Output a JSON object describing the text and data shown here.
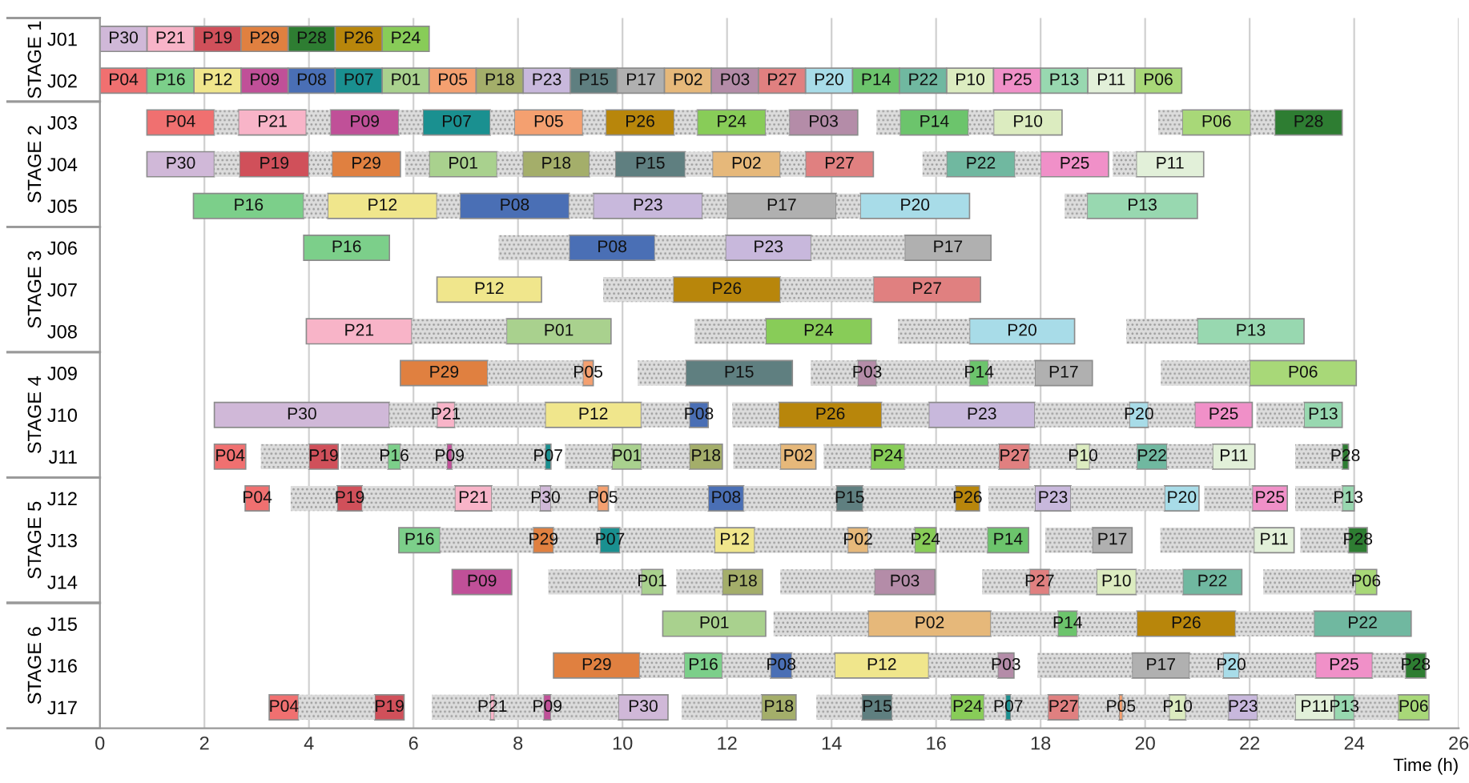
{
  "chart_data": {
    "type": "bar",
    "orientation": "horizontal",
    "xlabel": "Time (h)",
    "categories": [
      "J01",
      "J02",
      "J03",
      "J04",
      "J05",
      "J06",
      "J07",
      "J08",
      "J09",
      "J10",
      "J11",
      "J12",
      "J13",
      "J14",
      "J15",
      "J16",
      "J17"
    ],
    "xlim": [
      0,
      26
    ],
    "xticks": [
      0,
      2,
      4,
      6,
      8,
      10,
      12,
      14,
      16,
      18,
      20,
      22,
      24,
      26
    ],
    "grid": "x",
    "legend": false,
    "annotations": [
      "STAGE 1",
      "STAGE 2",
      "STAGE 3",
      "STAGE 4",
      "STAGE 5",
      "STAGE 6"
    ],
    "series": [
      {
        "name": "P01",
        "color": "#a9d18e",
        "base": [
          null,
          5.4,
          null,
          6.3,
          null,
          null,
          null,
          7.78,
          null,
          null,
          9.8,
          null,
          null,
          10.36,
          10.77,
          null,
          null
        ],
        "values": [
          null,
          0.9,
          null,
          1.3,
          null,
          null,
          null,
          2.0,
          null,
          null,
          0.56,
          null,
          null,
          0.41,
          1.97,
          null,
          null
        ]
      },
      {
        "name": "P02",
        "color": "#e6b87a",
        "base": [
          null,
          10.8,
          null,
          11.72,
          null,
          null,
          null,
          null,
          null,
          null,
          13.02,
          null,
          14.31,
          null,
          14.7,
          null,
          null
        ],
        "values": [
          null,
          0.9,
          null,
          1.3,
          null,
          null,
          null,
          null,
          null,
          null,
          0.68,
          null,
          0.39,
          null,
          2.35,
          null,
          null
        ]
      },
      {
        "name": "P03",
        "color": "#b48ca8",
        "base": [
          null,
          11.7,
          13.19,
          null,
          null,
          null,
          null,
          null,
          14.5,
          null,
          null,
          null,
          null,
          14.82,
          null,
          17.18,
          null
        ],
        "values": [
          null,
          0.9,
          1.31,
          null,
          null,
          null,
          null,
          null,
          0.36,
          null,
          null,
          null,
          null,
          1.16,
          null,
          0.31,
          null
        ]
      },
      {
        "name": "P04",
        "color": "#f07070",
        "base": [
          null,
          0,
          0.9,
          null,
          null,
          null,
          null,
          null,
          null,
          null,
          2.19,
          2.78,
          null,
          null,
          null,
          null,
          3.24
        ],
        "values": [
          null,
          0.9,
          1.29,
          null,
          null,
          null,
          null,
          null,
          null,
          null,
          0.6,
          0.46,
          null,
          null,
          null,
          null,
          0.56
        ]
      },
      {
        "name": "P05",
        "color": "#f4a070",
        "base": [
          null,
          6.3,
          7.93,
          null,
          null,
          null,
          null,
          null,
          9.24,
          null,
          null,
          9.52,
          null,
          null,
          null,
          null,
          19.5
        ],
        "values": [
          null,
          0.9,
          1.31,
          null,
          null,
          null,
          null,
          null,
          0.2,
          null,
          null,
          0.21,
          null,
          null,
          null,
          null,
          0.07
        ]
      },
      {
        "name": "P06",
        "color": "#a8d878",
        "base": [
          null,
          19.8,
          20.71,
          null,
          null,
          null,
          null,
          null,
          22.0,
          null,
          null,
          null,
          null,
          24.02,
          null,
          null,
          24.84
        ],
        "values": [
          null,
          0.9,
          1.31,
          null,
          null,
          null,
          null,
          null,
          2.04,
          null,
          null,
          null,
          null,
          0.41,
          null,
          null,
          0.59
        ]
      },
      {
        "name": "P07",
        "color": "#1a9090",
        "base": [
          null,
          4.5,
          6.18,
          null,
          null,
          null,
          null,
          null,
          null,
          null,
          8.52,
          null,
          9.57,
          null,
          null,
          null,
          17.33
        ],
        "values": [
          null,
          0.9,
          1.29,
          null,
          null,
          null,
          null,
          null,
          null,
          null,
          0.11,
          null,
          0.38,
          null,
          null,
          null,
          0.1
        ]
      },
      {
        "name": "P08",
        "color": "#4a6fb5",
        "base": [
          null,
          3.6,
          null,
          null,
          6.89,
          8.98,
          null,
          null,
          null,
          11.28,
          null,
          11.64,
          null,
          null,
          null,
          12.83,
          null
        ],
        "values": [
          null,
          0.9,
          null,
          null,
          2.09,
          1.64,
          null,
          null,
          null,
          0.36,
          null,
          0.68,
          null,
          null,
          null,
          0.41,
          null
        ]
      },
      {
        "name": "P09",
        "color": "#c05098",
        "base": [
          null,
          2.7,
          4.41,
          null,
          null,
          null,
          null,
          null,
          null,
          null,
          6.64,
          null,
          null,
          6.74,
          null,
          null,
          8.49
        ],
        "values": [
          null,
          0.9,
          1.31,
          null,
          null,
          null,
          null,
          null,
          null,
          null,
          0.1,
          null,
          null,
          1.14,
          null,
          null,
          0.14
        ]
      },
      {
        "name": "P10",
        "color": "#dcecc0",
        "base": [
          null,
          16.2,
          17.1,
          null,
          null,
          null,
          null,
          null,
          null,
          null,
          18.68,
          null,
          null,
          19.07,
          null,
          null,
          20.46
        ],
        "values": [
          null,
          0.9,
          1.31,
          null,
          null,
          null,
          null,
          null,
          null,
          null,
          0.26,
          null,
          null,
          0.76,
          null,
          null,
          0.32
        ]
      },
      {
        "name": "P11",
        "color": "#e2f0d9",
        "base": [
          null,
          18.9,
          null,
          19.83,
          null,
          null,
          null,
          null,
          null,
          null,
          21.29,
          null,
          22.08,
          null,
          null,
          null,
          22.87
        ],
        "values": [
          null,
          0.9,
          null,
          1.29,
          null,
          null,
          null,
          null,
          null,
          null,
          0.81,
          null,
          0.77,
          null,
          null,
          null,
          0.75
        ]
      },
      {
        "name": "P12",
        "color": "#f0e68c",
        "base": [
          null,
          1.8,
          null,
          null,
          4.36,
          null,
          6.45,
          null,
          null,
          8.52,
          null,
          null,
          11.76,
          null,
          null,
          14.06,
          null
        ],
        "values": [
          null,
          0.9,
          null,
          null,
          2.09,
          null,
          2.0,
          null,
          null,
          1.84,
          null,
          null,
          0.77,
          null,
          null,
          1.8,
          null
        ]
      },
      {
        "name": "P13",
        "color": "#98d8b0",
        "base": [
          null,
          18.0,
          null,
          null,
          18.89,
          null,
          null,
          21.0,
          null,
          23.04,
          null,
          23.77,
          null,
          null,
          null,
          null,
          23.62
        ],
        "values": [
          null,
          0.9,
          null,
          null,
          2.11,
          null,
          null,
          2.04,
          null,
          0.73,
          null,
          0.23,
          null,
          null,
          null,
          null,
          0.38
        ]
      },
      {
        "name": "P14",
        "color": "#6cc46c",
        "base": [
          null,
          14.4,
          15.31,
          null,
          null,
          null,
          null,
          null,
          16.64,
          null,
          null,
          null,
          16.98,
          null,
          18.33,
          null,
          null
        ],
        "values": [
          null,
          0.9,
          1.31,
          null,
          null,
          null,
          null,
          null,
          0.36,
          null,
          null,
          null,
          0.79,
          null,
          0.37,
          null,
          null
        ]
      },
      {
        "name": "P15",
        "color": "#5f7f80",
        "base": [
          null,
          9.0,
          null,
          9.86,
          null,
          null,
          null,
          null,
          11.21,
          null,
          null,
          14.09,
          null,
          null,
          null,
          null,
          14.58
        ],
        "values": [
          null,
          0.9,
          null,
          1.34,
          null,
          null,
          null,
          null,
          2.04,
          null,
          null,
          0.51,
          null,
          null,
          null,
          null,
          0.58
        ]
      },
      {
        "name": "P16",
        "color": "#7ccf8a",
        "base": [
          null,
          0.9,
          null,
          null,
          1.79,
          3.9,
          null,
          null,
          null,
          null,
          5.51,
          null,
          5.72,
          null,
          null,
          11.18,
          null
        ],
        "values": [
          null,
          0.9,
          null,
          null,
          2.11,
          1.64,
          null,
          null,
          null,
          null,
          0.24,
          null,
          0.79,
          null,
          null,
          0.73,
          null
        ]
      },
      {
        "name": "P17",
        "color": "#b0b0b0",
        "base": [
          null,
          9.9,
          null,
          null,
          12.0,
          15.4,
          null,
          null,
          17.89,
          null,
          null,
          null,
          18.99,
          null,
          null,
          19.75,
          null
        ],
        "values": [
          null,
          0.9,
          null,
          null,
          2.09,
          1.65,
          null,
          null,
          1.1,
          null,
          null,
          null,
          0.76,
          null,
          null,
          1.1,
          null
        ]
      },
      {
        "name": "P18",
        "color": "#a4ae6a",
        "base": [
          null,
          7.2,
          null,
          8.09,
          null,
          null,
          null,
          null,
          null,
          null,
          11.28,
          null,
          null,
          11.91,
          null,
          null,
          12.66
        ],
        "values": [
          null,
          0.9,
          null,
          1.28,
          null,
          null,
          null,
          null,
          null,
          null,
          0.63,
          null,
          null,
          0.77,
          null,
          null,
          0.66
        ]
      },
      {
        "name": "P19",
        "color": "#d0505a",
        "base": [
          1.8,
          null,
          null,
          2.67,
          null,
          null,
          null,
          null,
          null,
          null,
          4.0,
          4.54,
          null,
          null,
          null,
          null,
          5.26
        ],
        "values": [
          0.9,
          null,
          null,
          1.33,
          null,
          null,
          null,
          null,
          null,
          null,
          0.56,
          0.48,
          null,
          null,
          null,
          null,
          0.56
        ]
      },
      {
        "name": "P20",
        "color": "#a8dce8",
        "base": [
          null,
          13.5,
          null,
          null,
          14.55,
          null,
          null,
          16.64,
          null,
          19.7,
          null,
          20.37,
          null,
          null,
          null,
          21.49,
          null
        ],
        "values": [
          null,
          0.9,
          null,
          null,
          2.09,
          null,
          null,
          2.01,
          null,
          0.36,
          null,
          0.66,
          null,
          null,
          null,
          0.31,
          null
        ]
      },
      {
        "name": "P21",
        "color": "#f8b4c8",
        "base": [
          0.9,
          null,
          2.65,
          null,
          null,
          null,
          null,
          3.95,
          null,
          6.45,
          null,
          6.79,
          null,
          null,
          null,
          null,
          7.47
        ],
        "values": [
          0.9,
          null,
          1.3,
          null,
          null,
          null,
          null,
          2.02,
          null,
          0.34,
          null,
          0.71,
          null,
          null,
          null,
          null,
          0.08
        ]
      },
      {
        "name": "P22",
        "color": "#70b8a0",
        "base": [
          null,
          15.3,
          null,
          16.2,
          null,
          null,
          null,
          null,
          null,
          null,
          19.84,
          null,
          null,
          20.72,
          23.23,
          null,
          null
        ],
        "values": [
          null,
          0.9,
          null,
          1.31,
          null,
          null,
          null,
          null,
          null,
          null,
          0.58,
          null,
          null,
          1.13,
          1.86,
          null,
          null
        ]
      },
      {
        "name": "P23",
        "color": "#c8b8dc",
        "base": [
          null,
          8.1,
          null,
          null,
          9.44,
          11.97,
          null,
          null,
          null,
          15.86,
          null,
          17.89,
          null,
          null,
          null,
          null,
          21.59
        ],
        "values": [
          null,
          0.9,
          null,
          null,
          2.09,
          1.64,
          null,
          null,
          null,
          2.03,
          null,
          0.69,
          null,
          null,
          null,
          null,
          0.56
        ]
      },
      {
        "name": "P24",
        "color": "#88cc58",
        "base": [
          5.4,
          null,
          11.43,
          null,
          null,
          null,
          null,
          12.74,
          null,
          null,
          14.75,
          null,
          15.59,
          null,
          null,
          null,
          16.28
        ],
        "values": [
          0.9,
          null,
          1.31,
          null,
          null,
          null,
          null,
          2.02,
          null,
          null,
          0.65,
          null,
          0.41,
          null,
          null,
          null,
          0.64
        ]
      },
      {
        "name": "P25",
        "color": "#f090c8",
        "base": [
          null,
          17.1,
          null,
          18.0,
          null,
          null,
          null,
          null,
          null,
          20.95,
          null,
          22.05,
          null,
          null,
          null,
          23.26,
          null
        ],
        "values": [
          null,
          0.9,
          null,
          1.3,
          null,
          null,
          null,
          null,
          null,
          1.1,
          null,
          0.67,
          null,
          null,
          null,
          1.09,
          null
        ]
      },
      {
        "name": "P26",
        "color": "#b8860b",
        "base": [
          4.5,
          null,
          9.68,
          null,
          null,
          null,
          10.97,
          null,
          null,
          12.99,
          null,
          16.37,
          null,
          null,
          19.84,
          null,
          null
        ],
        "values": [
          0.9,
          null,
          1.31,
          null,
          null,
          null,
          2.05,
          null,
          null,
          1.97,
          null,
          0.46,
          null,
          null,
          1.89,
          null,
          null
        ]
      },
      {
        "name": "P27",
        "color": "#e08080",
        "base": [
          null,
          12.6,
          null,
          13.5,
          null,
          null,
          14.8,
          null,
          null,
          null,
          17.2,
          null,
          null,
          17.79,
          null,
          null,
          18.14
        ],
        "values": [
          null,
          0.9,
          null,
          1.3,
          null,
          null,
          2.05,
          null,
          null,
          null,
          0.59,
          null,
          null,
          0.38,
          null,
          null,
          0.59
        ]
      },
      {
        "name": "P28",
        "color": "#2e7d32",
        "base": [
          3.6,
          null,
          22.48,
          null,
          null,
          null,
          null,
          null,
          null,
          null,
          23.77,
          null,
          23.89,
          null,
          null,
          24.98,
          null
        ],
        "values": [
          0.9,
          null,
          1.29,
          null,
          null,
          null,
          null,
          null,
          null,
          null,
          0.12,
          null,
          0.36,
          null,
          null,
          0.39,
          null
        ]
      },
      {
        "name": "P29",
        "color": "#e08040",
        "base": [
          2.7,
          null,
          null,
          4.44,
          null,
          null,
          null,
          null,
          5.75,
          null,
          null,
          null,
          8.29,
          null,
          null,
          8.68,
          null
        ],
        "values": [
          0.9,
          null,
          null,
          1.31,
          null,
          null,
          null,
          null,
          1.67,
          null,
          null,
          null,
          0.39,
          null,
          null,
          1.65,
          null
        ]
      },
      {
        "name": "P30",
        "color": "#d0b8d8",
        "base": [
          0,
          null,
          null,
          0.9,
          null,
          null,
          null,
          null,
          null,
          2.19,
          null,
          8.42,
          null,
          null,
          null,
          null,
          9.92
        ],
        "values": [
          0.9,
          null,
          null,
          1.29,
          null,
          null,
          null,
          null,
          null,
          3.35,
          null,
          0.21,
          null,
          null,
          null,
          null,
          0.95
        ]
      },
      {
        "color": "#dcdcdc",
        "base": [
          null,
          null,
          2.19,
          2.19,
          3.9,
          7.63,
          9.63,
          5.97,
          7.42,
          5.54,
          3.08,
          3.65,
          6.51,
          8.58,
          12.89,
          10.33,
          3.8
        ],
        "values": [
          null,
          null,
          0.46,
          0.48,
          0.46,
          1.35,
          1.34,
          1.81,
          1.82,
          0.91,
          0.92,
          0.89,
          1.78,
          1.78,
          1.81,
          0.85,
          1.46
        ]
      },
      {
        "color": "#dcdcdc",
        "base": [
          null,
          null,
          3.95,
          4.0,
          6.45,
          10.62,
          13.02,
          11.38,
          10.29,
          6.79,
          4.61,
          5.02,
          8.68,
          11.03,
          17.05,
          11.91,
          6.35
        ],
        "values": [
          null,
          null,
          0.46,
          0.44,
          0.44,
          1.35,
          1.78,
          1.36,
          0.92,
          1.73,
          0.9,
          1.77,
          0.89,
          0.88,
          1.28,
          0.92,
          1.12
        ]
      },
      {
        "color": "#dcdcdc",
        "base": [
          null,
          null,
          5.72,
          5.84,
          8.98,
          13.61,
          null,
          15.27,
          13.6,
          10.36,
          5.75,
          7.5,
          9.95,
          13.02,
          18.7,
          13.24,
          7.55
        ],
        "values": [
          null,
          null,
          0.46,
          0.46,
          0.46,
          1.79,
          null,
          1.37,
          0.9,
          0.92,
          0.89,
          0.92,
          1.81,
          1.8,
          1.14,
          0.82,
          0.94
        ]
      },
      {
        "color": "#dcdcdc",
        "base": [
          null,
          null,
          7.47,
          7.6,
          11.53,
          null,
          null,
          19.64,
          14.86,
          12.1,
          6.74,
          8.63,
          12.53,
          16.88,
          21.73,
          15.86,
          8.63
        ],
        "values": [
          null,
          null,
          0.46,
          0.49,
          0.47,
          null,
          null,
          1.36,
          1.78,
          0.89,
          1.78,
          0.89,
          1.78,
          0.91,
          1.5,
          1.32,
          1.29
        ]
      },
      {
        "color": "#dcdcdc",
        "base": [
          null,
          null,
          9.24,
          9.37,
          14.09,
          null,
          null,
          null,
          17.0,
          14.96,
          8.9,
          9.85,
          14.7,
          18.17,
          null,
          17.94,
          11.13
        ],
        "values": [
          null,
          null,
          0.44,
          0.49,
          0.46,
          null,
          null,
          null,
          0.89,
          0.9,
          0.9,
          1.79,
          0.89,
          0.9,
          null,
          1.81,
          1.53
        ]
      },
      {
        "color": "#dcdcdc",
        "base": [
          null,
          null,
          10.99,
          11.2,
          18.46,
          null,
          null,
          null,
          20.3,
          17.89,
          10.36,
          12.32,
          16.06,
          19.83,
          null,
          20.85,
          13.71
        ],
        "values": [
          null,
          null,
          0.44,
          0.52,
          0.43,
          null,
          null,
          null,
          1.7,
          1.81,
          0.92,
          1.77,
          0.92,
          0.89,
          null,
          0.64,
          0.87
        ]
      },
      {
        "color": "#dcdcdc",
        "base": [
          null,
          null,
          12.74,
          13.02,
          null,
          null,
          null,
          null,
          null,
          20.06,
          12.12,
          14.6,
          18.09,
          22.26,
          null,
          21.8,
          15.16
        ],
        "values": [
          null,
          null,
          0.45,
          0.48,
          null,
          null,
          null,
          null,
          null,
          0.89,
          0.9,
          1.77,
          0.9,
          1.76,
          null,
          1.46,
          1.12
        ]
      },
      {
        "color": "#dcdcdc",
        "base": [
          null,
          null,
          14.86,
          15.74,
          null,
          null,
          null,
          null,
          null,
          22.13,
          13.85,
          17.0,
          20.29,
          null,
          null,
          24.35,
          16.92
        ],
        "values": [
          null,
          null,
          0.45,
          0.46,
          null,
          null,
          null,
          null,
          null,
          0.91,
          0.9,
          0.89,
          1.79,
          null,
          null,
          0.63,
          0.41
        ]
      },
      {
        "color": "#dcdcdc",
        "base": [
          null,
          null,
          16.62,
          17.51,
          null,
          null,
          null,
          null,
          null,
          null,
          15.4,
          18.58,
          22.97,
          null,
          null,
          null,
          17.43
        ],
        "values": [
          null,
          null,
          0.48,
          0.49,
          null,
          null,
          null,
          null,
          null,
          null,
          1.8,
          1.79,
          0.92,
          null,
          null,
          null,
          0.71
        ]
      },
      {
        "color": "#dcdcdc",
        "base": [
          null,
          null,
          20.25,
          19.38,
          null,
          null,
          null,
          null,
          null,
          null,
          17.79,
          21.13,
          null,
          null,
          null,
          null,
          18.73
        ],
        "values": [
          null,
          null,
          0.46,
          0.45,
          null,
          null,
          null,
          null,
          null,
          null,
          0.89,
          0.92,
          null,
          null,
          null,
          null,
          0.77
        ]
      },
      {
        "color": "#dcdcdc",
        "base": [
          null,
          null,
          22.02,
          null,
          null,
          null,
          null,
          null,
          null,
          null,
          18.94,
          22.87,
          null,
          null,
          null,
          null,
          19.57
        ],
        "values": [
          null,
          null,
          0.46,
          null,
          null,
          null,
          null,
          null,
          null,
          null,
          0.9,
          0.9,
          null,
          null,
          null,
          null,
          0.89
        ]
      },
      {
        "color": "#dcdcdc",
        "base": [
          null,
          null,
          null,
          null,
          null,
          null,
          null,
          null,
          null,
          null,
          20.42,
          null,
          null,
          null,
          null,
          null,
          20.78
        ],
        "values": [
          null,
          null,
          null,
          null,
          null,
          null,
          null,
          null,
          null,
          null,
          0.87,
          null,
          null,
          null,
          null,
          null,
          0.81
        ]
      },
      {
        "color": "#dcdcdc",
        "base": [
          null,
          null,
          null,
          null,
          null,
          null,
          null,
          null,
          null,
          null,
          22.87,
          null,
          null,
          null,
          null,
          null,
          22.15
        ],
        "values": [
          null,
          null,
          null,
          null,
          null,
          null,
          null,
          null,
          null,
          null,
          0.9,
          null,
          null,
          null,
          null,
          null,
          0.72
        ]
      },
      {
        "color": "#dcdcdc",
        "base": [
          null,
          null,
          null,
          null,
          null,
          null,
          null,
          null,
          null,
          null,
          null,
          null,
          null,
          null,
          null,
          null,
          24.0
        ],
        "values": [
          null,
          null,
          null,
          null,
          null,
          null,
          null,
          null,
          null,
          null,
          null,
          null,
          null,
          null,
          null,
          null,
          0.84
        ]
      }
    ]
  }
}
